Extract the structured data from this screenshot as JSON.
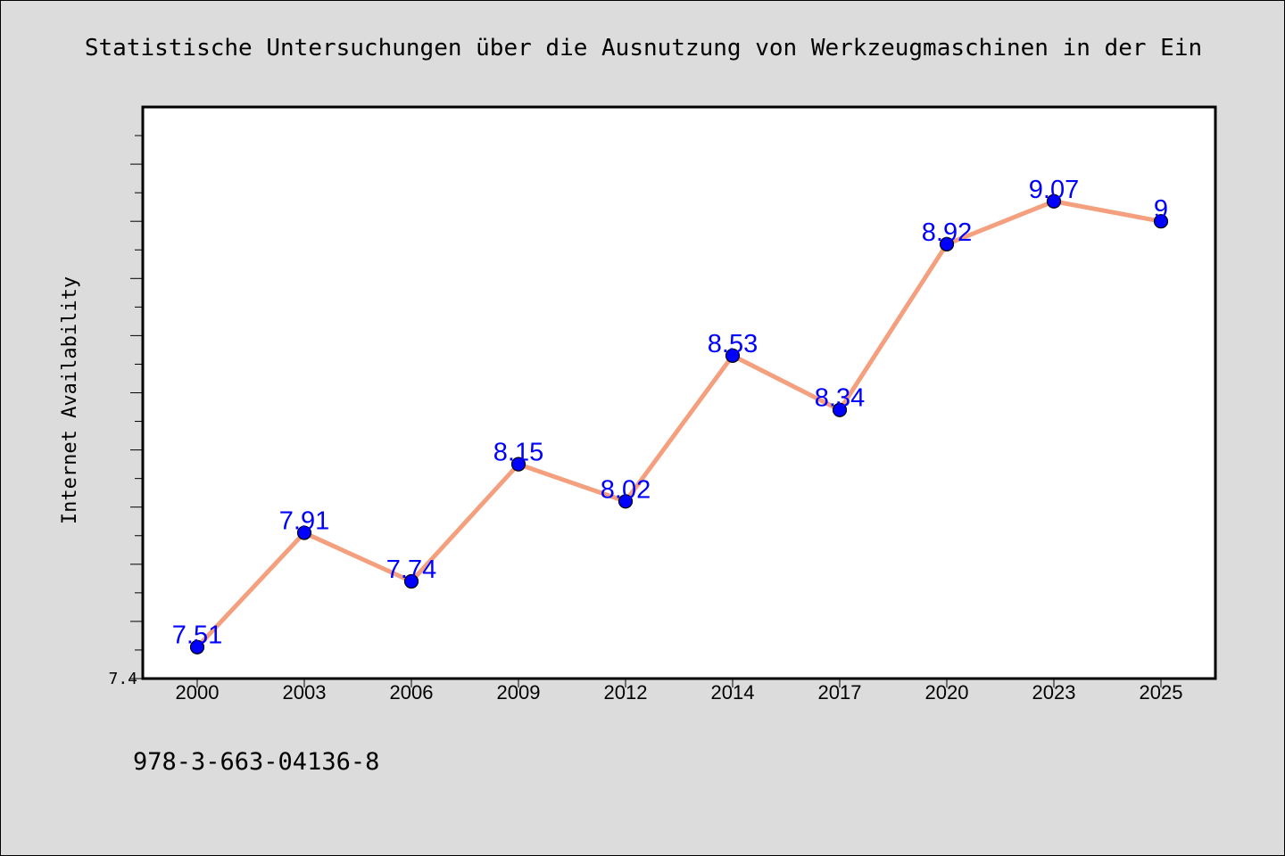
{
  "chart_data": {
    "type": "line",
    "title": "Statistische Untersuchungen über die Ausnutzung von Werkzeugmaschinen in der Ein",
    "xlabel": "",
    "ylabel": "Internet Availability",
    "categories": [
      "2000",
      "2003",
      "2006",
      "2009",
      "2012",
      "2014",
      "2017",
      "2020",
      "2023",
      "2025"
    ],
    "series": [
      {
        "values": [
          7.51,
          7.91,
          7.74,
          8.15,
          8.02,
          8.53,
          8.34,
          8.92,
          9.07,
          9
        ]
      }
    ],
    "data_labels": [
      "7.51",
      "7.91",
      "7.74",
      "8.15",
      "8.02",
      "8.53",
      "8.34",
      "8.92",
      "9.07",
      "9"
    ],
    "ylim": [
      7.4,
      9.4
    ],
    "y_tick_labels": [
      "7.4"
    ],
    "grid": false,
    "legend": "none",
    "colors": {
      "line": "#f4a07e",
      "marker": "#0000ff",
      "data_label": "#0000ff",
      "plot_background": "#ffffff",
      "page_background": "#dcdcdc"
    }
  },
  "footer": {
    "isbn": "978-3-663-04136-8"
  }
}
